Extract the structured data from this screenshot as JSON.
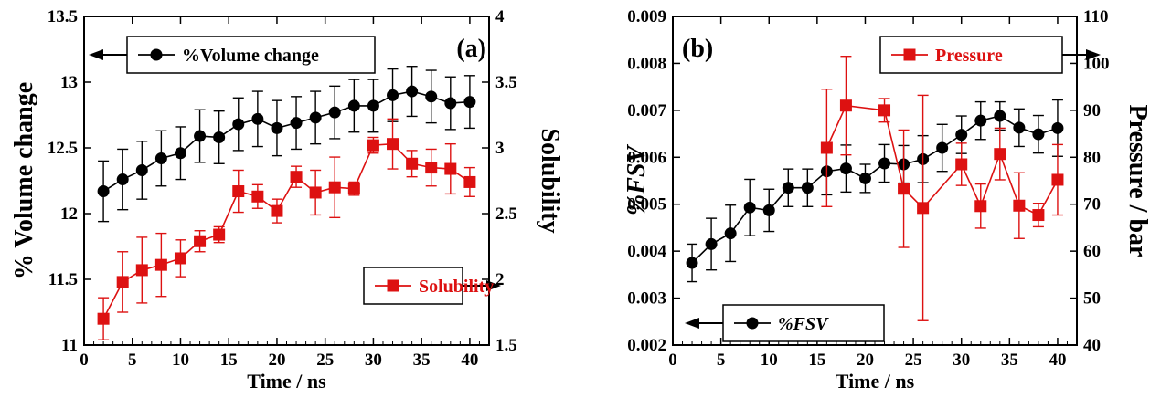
{
  "chart_data": [
    {
      "type": "line",
      "panel_label": "(a)",
      "xlabel": "Time / ns",
      "ylabel_left": "% Volume change",
      "ylabel_right": "Solubility",
      "xlim": [
        0,
        42
      ],
      "ylim_left": [
        11,
        13.5
      ],
      "ylim_right": [
        1.5,
        4
      ],
      "x_ticks": [
        0,
        5,
        10,
        15,
        20,
        25,
        30,
        35,
        40
      ],
      "y_ticks_left": [
        11,
        11.5,
        12,
        12.5,
        13,
        13.5
      ],
      "y_ticks_right": [
        1.5,
        2,
        2.5,
        3,
        3.5,
        4
      ],
      "series": [
        {
          "name": "%Volume change",
          "axis": "left",
          "color": "#000000",
          "marker": "circle",
          "x": [
            2,
            4,
            6,
            8,
            10,
            12,
            14,
            16,
            18,
            20,
            22,
            24,
            26,
            28,
            30,
            32,
            34,
            36,
            38,
            40
          ],
          "y": [
            12.17,
            12.26,
            12.33,
            12.42,
            12.46,
            12.59,
            12.58,
            12.68,
            12.72,
            12.65,
            12.69,
            12.73,
            12.77,
            12.82,
            12.82,
            12.9,
            12.93,
            12.89,
            12.84,
            12.85
          ],
          "err": [
            0.23,
            0.23,
            0.22,
            0.21,
            0.2,
            0.2,
            0.2,
            0.2,
            0.21,
            0.21,
            0.2,
            0.2,
            0.2,
            0.2,
            0.2,
            0.2,
            0.19,
            0.2,
            0.2,
            0.2
          ],
          "legend_text": "%Volume change",
          "legend_arrow": "left"
        },
        {
          "name": "Solubility",
          "axis": "right",
          "color": "#dd1111",
          "marker": "square",
          "x": [
            2,
            4,
            6,
            8,
            10,
            12,
            14,
            16,
            18,
            20,
            22,
            24,
            26,
            28,
            30,
            32,
            34,
            36,
            38,
            40
          ],
          "y": [
            1.7,
            1.98,
            2.07,
            2.11,
            2.16,
            2.29,
            2.34,
            2.67,
            2.63,
            2.52,
            2.78,
            2.66,
            2.7,
            2.69,
            3.02,
            3.03,
            2.88,
            2.85,
            2.84,
            2.74
          ],
          "err": [
            0.16,
            0.23,
            0.25,
            0.24,
            0.14,
            0.08,
            0.06,
            0.16,
            0.09,
            0.09,
            0.08,
            0.17,
            0.23,
            0.05,
            0.06,
            0.19,
            0.1,
            0.14,
            0.19,
            0.11
          ],
          "legend_text": "Solubility",
          "legend_arrow": "right"
        }
      ]
    },
    {
      "type": "line",
      "panel_label": "(b)",
      "xlabel": "Time / ns",
      "ylabel_left": "%FSV",
      "ylabel_right": "Pressure / bar",
      "xlim": [
        0,
        42
      ],
      "ylim_left": [
        0.002,
        0.009
      ],
      "ylim_right": [
        40,
        110
      ],
      "x_ticks": [
        0,
        5,
        10,
        15,
        20,
        25,
        30,
        35,
        40
      ],
      "y_ticks_left": [
        0.002,
        0.003,
        0.004,
        0.005,
        0.006,
        0.007,
        0.008,
        0.009
      ],
      "y_ticks_left_labels": [
        "0.002",
        "0.003",
        "0.004",
        "0.005",
        "0.006",
        "0.007",
        "0.008",
        "0.009"
      ],
      "y_ticks_right": [
        40,
        50,
        60,
        70,
        80,
        90,
        100,
        110
      ],
      "series": [
        {
          "name": "%FSV",
          "axis": "left",
          "color": "#000000",
          "marker": "circle",
          "x": [
            2,
            4,
            6,
            8,
            10,
            12,
            14,
            16,
            18,
            20,
            22,
            24,
            26,
            28,
            30,
            32,
            34,
            36,
            38,
            40
          ],
          "y": [
            0.00375,
            0.00415,
            0.00438,
            0.00493,
            0.00487,
            0.00535,
            0.00535,
            0.0057,
            0.00576,
            0.00555,
            0.00587,
            0.00585,
            0.00596,
            0.0062,
            0.00648,
            0.00678,
            0.00688,
            0.00663,
            0.00649,
            0.00662
          ],
          "err": [
            0.0004,
            0.00055,
            0.0006,
            0.0006,
            0.00045,
            0.0004,
            0.0004,
            0.0005,
            0.0005,
            0.0003,
            0.0004,
            0.0004,
            0.0005,
            0.0005,
            0.0004,
            0.0004,
            0.0003,
            0.0004,
            0.0004,
            0.0006
          ],
          "legend_text": "%FSV",
          "legend_arrow": "left"
        },
        {
          "name": "Pressure",
          "axis": "right",
          "color": "#dd1111",
          "marker": "square",
          "x": [
            16,
            18,
            22,
            24,
            26,
            30,
            32,
            34,
            36,
            38,
            40
          ],
          "y": [
            82.0,
            91.0,
            90.0,
            73.3,
            69.2,
            78.5,
            69.6,
            80.7,
            69.7,
            67.7,
            75.2
          ],
          "err": [
            12.5,
            10.5,
            2.5,
            12.5,
            24.0,
            4.5,
            4.7,
            5.5,
            7.0,
            2.5,
            7.5
          ],
          "legend_text": "Pressure",
          "legend_arrow": "right"
        }
      ]
    }
  ]
}
